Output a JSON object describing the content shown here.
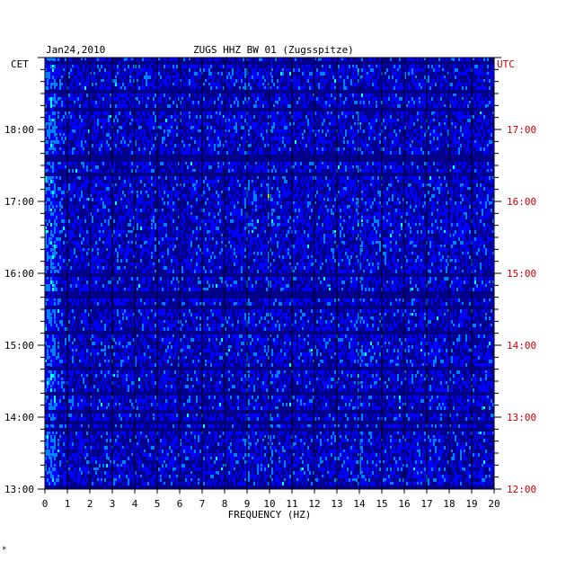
{
  "chart_data": {
    "type": "heatmap",
    "date": "Jan24,2010",
    "title": "ZUGS HHZ BW 01 (Zugsspitze)",
    "left_axis_unit": "CET",
    "right_axis_unit": "UTC",
    "xlabel": "FREQUENCY (HZ)",
    "x_ticks": [
      "0",
      "1",
      "2",
      "3",
      "4",
      "5",
      "6",
      "7",
      "8",
      "9",
      "10",
      "11",
      "12",
      "13",
      "14",
      "15",
      "16",
      "17",
      "18",
      "19",
      "20"
    ],
    "xlim": [
      0,
      20
    ],
    "y_range_hours": [
      13.0,
      19.0
    ],
    "left_y_ticks": [
      "13:00",
      "14:00",
      "15:00",
      "16:00",
      "17:00",
      "18:00"
    ],
    "right_y_ticks": [
      "12:00",
      "13:00",
      "14:00",
      "15:00",
      "16:00",
      "17:00"
    ],
    "colormap": [
      "#00008b",
      "#0000ff",
      "#0080ff",
      "#00ffff",
      "#ffff00",
      "#ff8000",
      "#ff0000"
    ],
    "notable_lines_hz": [
      0.3,
      9.0,
      10.0,
      14.0
    ],
    "footnote": "*"
  }
}
